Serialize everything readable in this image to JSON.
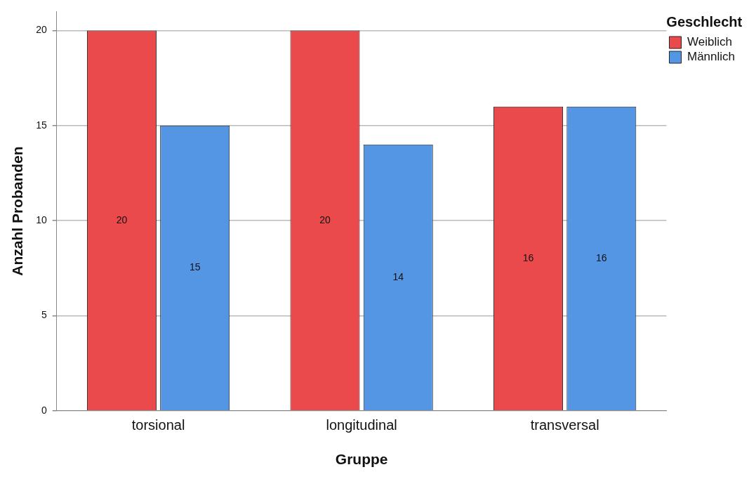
{
  "chart_data": {
    "type": "bar",
    "xlabel": "Gruppe",
    "ylabel": "Anzahl Probanden",
    "legend_title": "Geschlecht",
    "categories": [
      "torsional",
      "longitudinal",
      "transversal"
    ],
    "series": [
      {
        "name": "Weiblich",
        "color": "#ea4a4b",
        "values": [
          20,
          20,
          16
        ]
      },
      {
        "name": "Männlich",
        "color": "#5596e4",
        "values": [
          15,
          14,
          16
        ]
      }
    ],
    "ylim": [
      0,
      21
    ],
    "yticks": [
      0,
      5,
      10,
      15,
      20
    ],
    "grid": "y",
    "legend": "top right",
    "data_labels": true
  }
}
